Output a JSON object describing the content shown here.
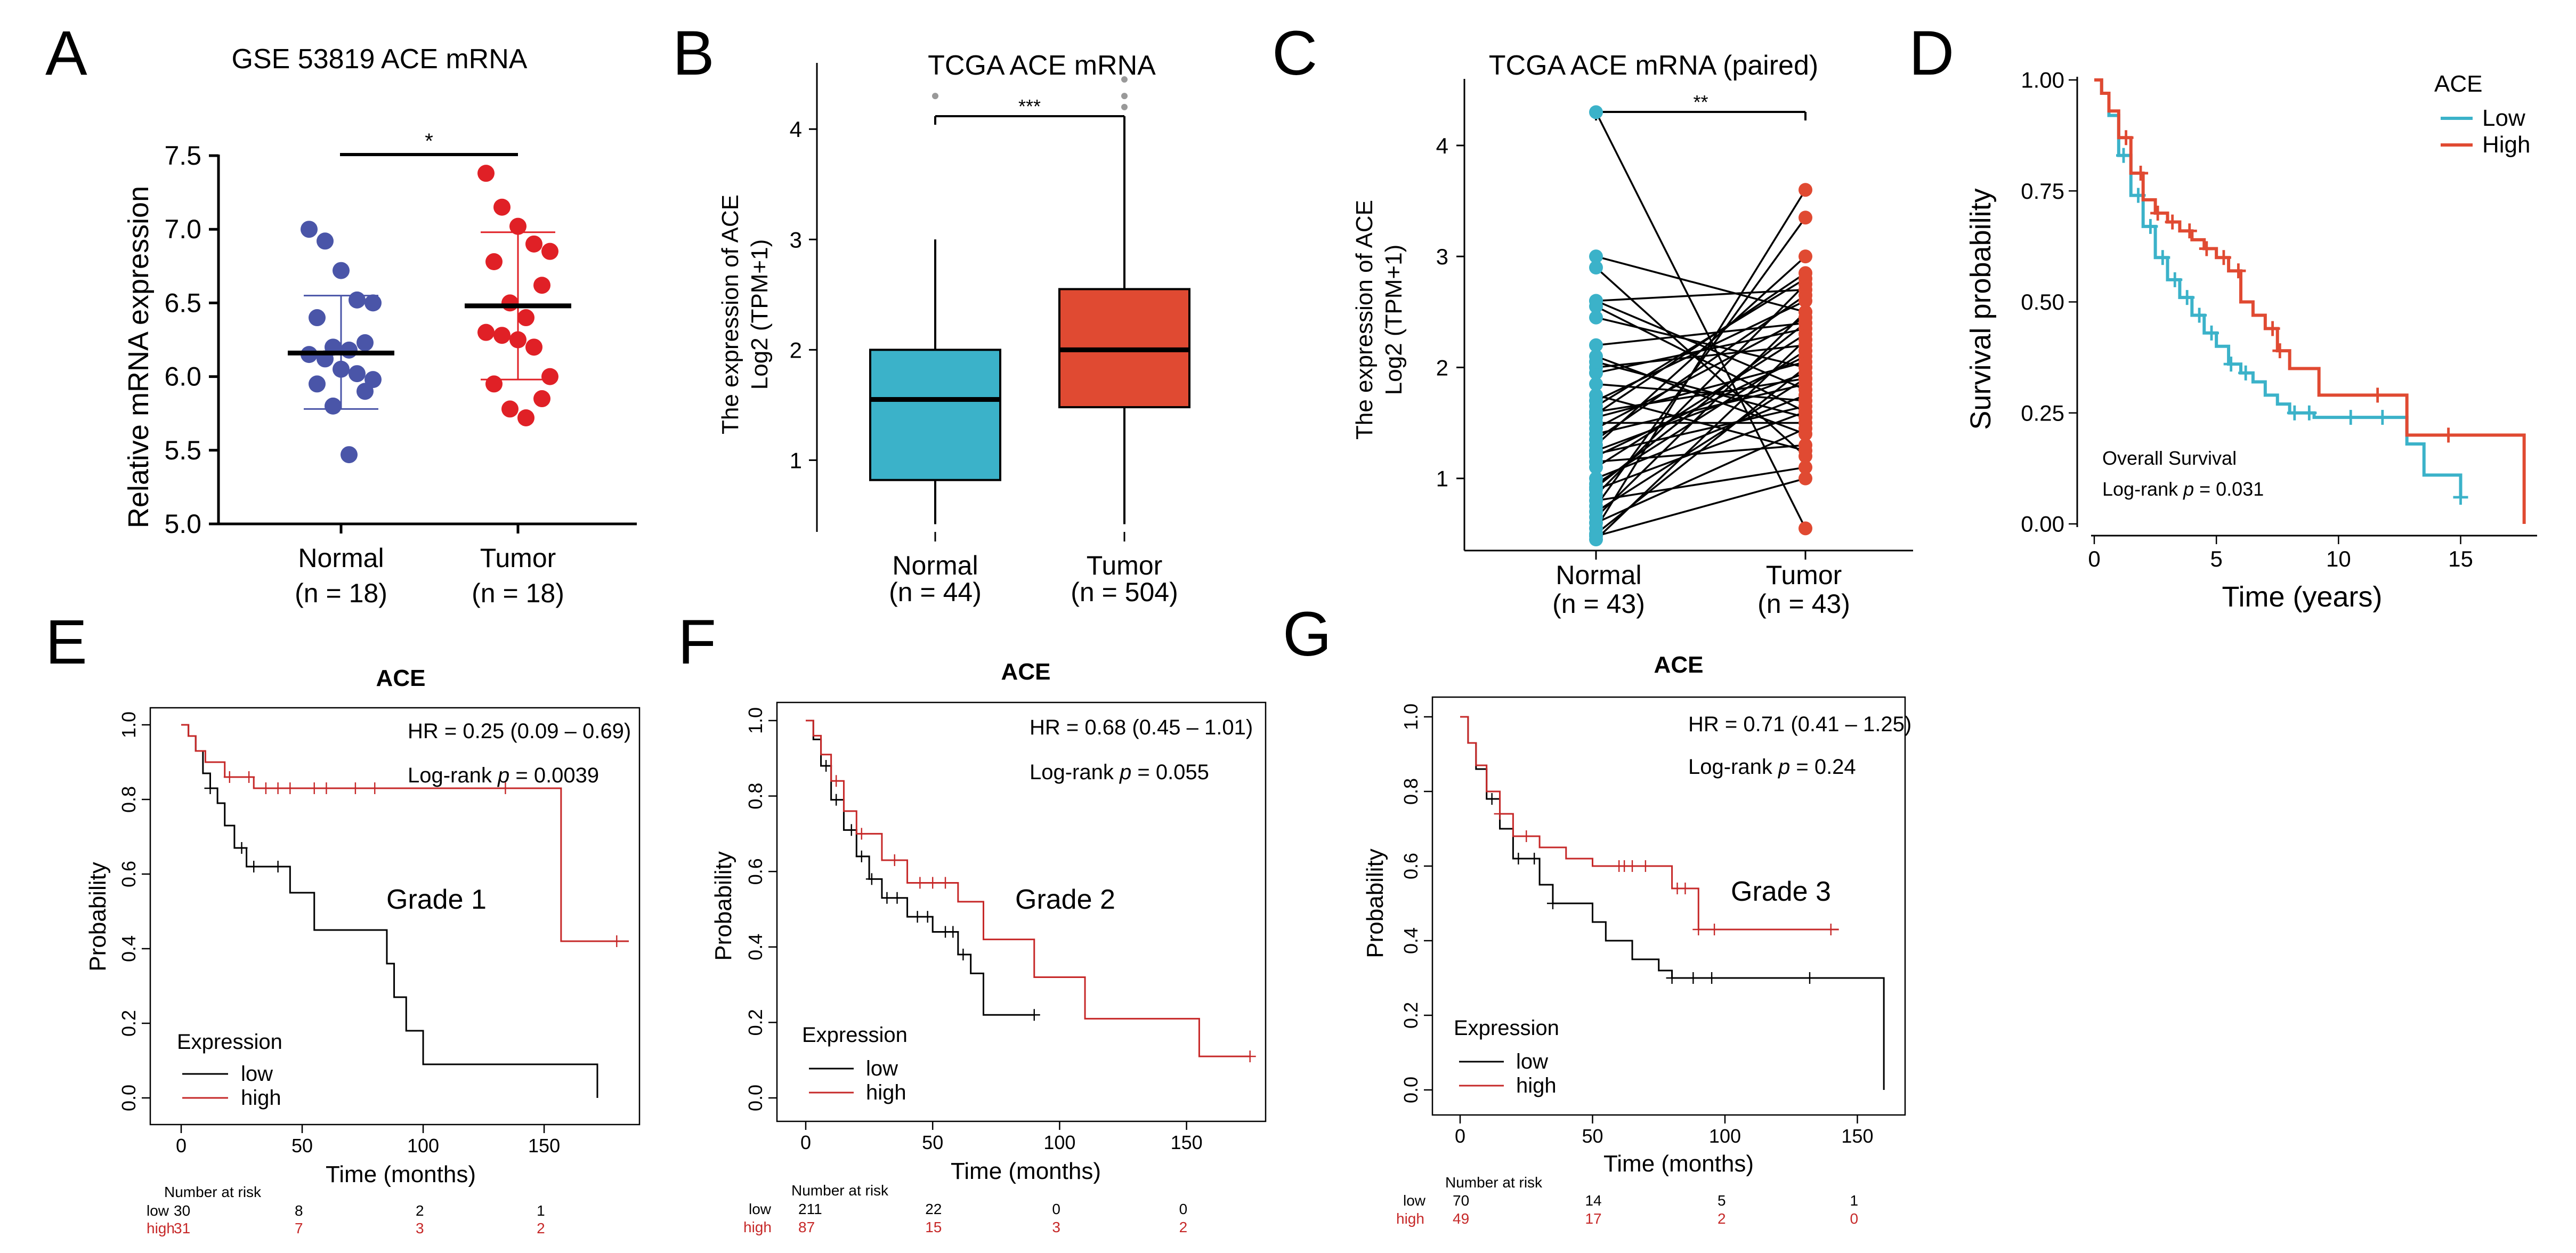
{
  "chart_data": [
    {
      "panel": "A",
      "type": "scatter",
      "title": "GSE 53819 ACE mRNA",
      "xlabel": "",
      "ylabel": "Relative mRNA expression",
      "ylim": [
        5.0,
        7.5
      ],
      "yticks": [
        "5.0",
        "5.5",
        "6.0",
        "6.5",
        "7.0",
        "7.5"
      ],
      "categories": [
        "Normal",
        "Tumor"
      ],
      "n_labels": [
        "(n = 18)",
        "(n = 18)"
      ],
      "significance": "*",
      "colors": {
        "Normal": "#4a55a8",
        "Tumor": "#e02026"
      },
      "series": [
        {
          "name": "Normal",
          "mean": 6.16,
          "sd_low": 5.78,
          "sd_high": 6.55,
          "values": [
            7.0,
            6.92,
            6.72,
            6.52,
            6.5,
            6.4,
            6.23,
            6.2,
            6.18,
            6.15,
            6.12,
            6.05,
            6.02,
            5.98,
            5.95,
            5.9,
            5.8,
            5.47
          ]
        },
        {
          "name": "Tumor",
          "mean": 6.48,
          "sd_low": 5.98,
          "sd_high": 6.98,
          "values": [
            7.38,
            7.15,
            7.02,
            6.9,
            6.85,
            6.78,
            6.62,
            6.5,
            6.4,
            6.3,
            6.28,
            6.25,
            6.2,
            6.0,
            5.95,
            5.85,
            5.78,
            5.72
          ]
        }
      ]
    },
    {
      "panel": "B",
      "type": "box",
      "title": "TCGA ACE mRNA",
      "ylabel_line1": "The expression of ACE",
      "ylabel_line2": "Log2 (TPM+1)",
      "ylim": [
        0.35,
        4.6
      ],
      "yticks": [
        "1",
        "2",
        "3",
        "4"
      ],
      "categories": [
        "Normal",
        "Tumor"
      ],
      "n_labels": [
        "(n = 44)",
        "(n = 504)"
      ],
      "significance": "***",
      "colors": {
        "Normal": "#3bb2c9",
        "Tumor": "#e04a32"
      },
      "series": [
        {
          "name": "Normal",
          "q1": 0.82,
          "median": 1.55,
          "q3": 2.0,
          "whisker_low": 0.42,
          "whisker_high": 3.0,
          "outliers": [
            4.3
          ]
        },
        {
          "name": "Tumor",
          "q1": 1.48,
          "median": 2.0,
          "q3": 2.55,
          "whisker_low": 0.42,
          "whisker_high": 4.1,
          "outliers": [
            4.2,
            4.3,
            4.45
          ]
        }
      ]
    },
    {
      "panel": "C",
      "type": "paired",
      "title": "TCGA ACE mRNA (paired)",
      "ylabel_line1": "The expression of ACE",
      "ylabel_line2": "Log2 (TPM+1)",
      "ylim": [
        0.35,
        4.6
      ],
      "yticks": [
        "1",
        "2",
        "3",
        "4"
      ],
      "categories": [
        "Normal",
        "Tumor"
      ],
      "n_labels": [
        "(n = 43)",
        "(n = 43)"
      ],
      "significance": "**",
      "colors": {
        "Normal": "#3bb2c9",
        "Tumor": "#e04a32"
      },
      "pairs": [
        [
          4.3,
          0.55
        ],
        [
          3.0,
          2.5
        ],
        [
          2.9,
          1.2
        ],
        [
          2.6,
          2.7
        ],
        [
          2.55,
          1.6
        ],
        [
          2.45,
          2.0
        ],
        [
          2.2,
          2.4
        ],
        [
          2.1,
          1.4
        ],
        [
          2.0,
          2.2
        ],
        [
          1.95,
          2.35
        ],
        [
          1.85,
          1.7
        ],
        [
          1.7,
          2.6
        ],
        [
          1.65,
          2.8
        ],
        [
          1.6,
          1.9
        ],
        [
          1.55,
          2.05
        ],
        [
          1.5,
          1.5
        ],
        [
          1.45,
          2.45
        ],
        [
          1.4,
          1.85
        ],
        [
          1.3,
          3.0
        ],
        [
          1.25,
          1.95
        ],
        [
          1.2,
          2.1
        ],
        [
          1.15,
          1.3
        ],
        [
          1.1,
          2.3
        ],
        [
          1.0,
          1.75
        ],
        [
          0.95,
          2.15
        ],
        [
          0.9,
          1.6
        ],
        [
          0.85,
          2.75
        ],
        [
          0.8,
          1.1
        ],
        [
          0.75,
          3.35
        ],
        [
          0.7,
          1.9
        ],
        [
          0.65,
          2.5
        ],
        [
          0.6,
          1.45
        ],
        [
          0.55,
          3.6
        ],
        [
          0.5,
          2.0
        ],
        [
          0.48,
          1.0
        ],
        [
          0.45,
          2.25
        ],
        [
          1.35,
          2.65
        ],
        [
          1.75,
          1.25
        ],
        [
          2.05,
          1.55
        ],
        [
          0.92,
          2.4
        ],
        [
          1.58,
          2.85
        ],
        [
          2.6,
          1.8
        ],
        [
          1.22,
          1.65
        ]
      ]
    },
    {
      "panel": "D",
      "type": "line",
      "subtype": "kaplan-meier",
      "ylabel": "Survival probability",
      "xlabel": "Time (years)",
      "xlim": [
        0,
        18
      ],
      "ylim": [
        0,
        1
      ],
      "xticks": [
        "0",
        "5",
        "10",
        "15"
      ],
      "yticks": [
        "0.00",
        "0.25",
        "0.50",
        "0.75",
        "1.00"
      ],
      "legend_title": "ACE",
      "annotation_line1": "Overall Survival",
      "annotation_line2_prefix": "Log-rank ",
      "annotation_p": "p",
      "annotation_line2_value": " = 0.031",
      "series": [
        {
          "name": "Low",
          "color": "#3bb2c9",
          "x": [
            0,
            0.3,
            0.6,
            1,
            1.5,
            2,
            2.5,
            3,
            3.5,
            4,
            4.5,
            5,
            5.5,
            6,
            6.5,
            7,
            7.5,
            8,
            9,
            10,
            11,
            12,
            12.8,
            13.5,
            15
          ],
          "y": [
            1.0,
            0.97,
            0.92,
            0.83,
            0.74,
            0.67,
            0.6,
            0.55,
            0.51,
            0.47,
            0.43,
            0.4,
            0.36,
            0.34,
            0.32,
            0.29,
            0.27,
            0.25,
            0.24,
            0.24,
            0.24,
            0.24,
            0.18,
            0.11,
            0.06
          ],
          "censor_x": [
            1.2,
            1.8,
            2.3,
            2.8,
            3.3,
            3.8,
            4.3,
            4.8,
            5.6,
            6.2,
            8.2,
            8.8,
            10.5,
            11.8,
            15
          ]
        },
        {
          "name": "High",
          "color": "#e04a32",
          "x": [
            0,
            0.3,
            0.6,
            1,
            1.5,
            2,
            2.5,
            3,
            3.5,
            4,
            4.5,
            5,
            5.5,
            6,
            6.5,
            7,
            7.5,
            8,
            9.2,
            11,
            12.8,
            13.5,
            15,
            17.6
          ],
          "y": [
            1.0,
            0.97,
            0.93,
            0.87,
            0.79,
            0.73,
            0.7,
            0.68,
            0.66,
            0.64,
            0.62,
            0.6,
            0.57,
            0.5,
            0.47,
            0.44,
            0.39,
            0.35,
            0.29,
            0.29,
            0.2,
            0.2,
            0.2,
            0.0
          ],
          "censor_x": [
            1.3,
            1.9,
            2.6,
            3.2,
            3.9,
            4.6,
            5.3,
            5.9,
            7.3,
            7.6,
            11.6,
            14.5
          ]
        }
      ]
    },
    {
      "panel": "E",
      "type": "line",
      "subtype": "kaplan-meier",
      "title": "ACE",
      "xlabel": "Time (months)",
      "ylabel": "Probability",
      "xlim": [
        0,
        185
      ],
      "ylim": [
        0,
        1
      ],
      "xticks": [
        "0",
        "50",
        "100",
        "150"
      ],
      "yticks": [
        "0.0",
        "0.2",
        "0.4",
        "0.6",
        "0.8",
        "1.0"
      ],
      "hr": "HR = 0.25  (0.09 – 0.69)",
      "logrank_prefix": "Log-rank ",
      "logrank_p": "p",
      "logrank_value": " = 0.0039",
      "grade_label": "Grade 1",
      "legend_title": "Expression",
      "risk_header": "Number at risk",
      "risk_rows": [
        {
          "label": "low",
          "color": "#000000",
          "values": [
            "30",
            "8",
            "2",
            "1"
          ]
        },
        {
          "label": "high",
          "color": "#c62828",
          "values": [
            "31",
            "7",
            "3",
            "2"
          ]
        }
      ],
      "series": [
        {
          "name": "low",
          "color": "#000000",
          "x": [
            0,
            3,
            6,
            9,
            12,
            15,
            18,
            22,
            27,
            35,
            45,
            55,
            58,
            85,
            88,
            93,
            100,
            150,
            172
          ],
          "y": [
            1.0,
            0.97,
            0.93,
            0.87,
            0.83,
            0.79,
            0.73,
            0.67,
            0.62,
            0.62,
            0.55,
            0.45,
            0.45,
            0.36,
            0.27,
            0.18,
            0.09,
            0.09,
            0.0
          ],
          "censor_x": [
            12,
            25,
            30,
            40
          ]
        },
        {
          "name": "high",
          "color": "#c62828",
          "x": [
            0,
            3,
            6,
            10,
            18,
            30,
            60,
            120,
            157,
            185
          ],
          "y": [
            1.0,
            0.97,
            0.93,
            0.9,
            0.86,
            0.83,
            0.83,
            0.83,
            0.42,
            0.42
          ],
          "censor_x": [
            20,
            28,
            35,
            40,
            45,
            55,
            60,
            72,
            80,
            134,
            180
          ]
        }
      ]
    },
    {
      "panel": "F",
      "type": "line",
      "subtype": "kaplan-meier",
      "title": "ACE",
      "xlabel": "Time (months)",
      "ylabel": "Probability",
      "xlim": [
        0,
        178
      ],
      "ylim": [
        0,
        1
      ],
      "xticks": [
        "0",
        "50",
        "100",
        "150"
      ],
      "yticks": [
        "0.0",
        "0.2",
        "0.4",
        "0.6",
        "0.8",
        "1.0"
      ],
      "hr": "HR = 0.68  (0.45 – 1.01)",
      "logrank_prefix": "Log-rank ",
      "logrank_p": "p",
      "logrank_value": " = 0.055",
      "grade_label": "Grade 2",
      "legend_title": "Expression",
      "risk_header": "Number at risk",
      "risk_rows": [
        {
          "label": "low",
          "color": "#000000",
          "values": [
            "211",
            "22",
            "0",
            "0"
          ]
        },
        {
          "label": "high",
          "color": "#c62828",
          "values": [
            "87",
            "15",
            "3",
            "2"
          ]
        }
      ],
      "series": [
        {
          "name": "low",
          "color": "#000000",
          "x": [
            0,
            3,
            6,
            10,
            15,
            20,
            25,
            30,
            40,
            50,
            60,
            65,
            70,
            75,
            90
          ],
          "y": [
            1.0,
            0.95,
            0.88,
            0.79,
            0.71,
            0.64,
            0.58,
            0.53,
            0.48,
            0.44,
            0.38,
            0.33,
            0.22,
            0.22,
            0.22
          ],
          "censor_x": [
            8,
            12,
            18,
            22,
            26,
            32,
            36,
            44,
            48,
            55,
            58,
            62,
            90
          ]
        },
        {
          "name": "high",
          "color": "#c62828",
          "x": [
            0,
            3,
            6,
            10,
            15,
            20,
            30,
            40,
            60,
            70,
            90,
            110,
            155,
            175
          ],
          "y": [
            1.0,
            0.96,
            0.91,
            0.84,
            0.76,
            0.7,
            0.63,
            0.57,
            0.52,
            0.42,
            0.32,
            0.21,
            0.11,
            0.11
          ],
          "censor_x": [
            12,
            22,
            35,
            45,
            50,
            55,
            175
          ]
        }
      ]
    },
    {
      "panel": "G",
      "type": "line",
      "subtype": "kaplan-meier",
      "title": "ACE",
      "xlabel": "Time (months)",
      "ylabel": "Probability",
      "xlim": [
        0,
        165
      ],
      "ylim": [
        0,
        1
      ],
      "xticks": [
        "0",
        "50",
        "100",
        "150"
      ],
      "yticks": [
        "0.0",
        "0.2",
        "0.4",
        "0.6",
        "0.8",
        "1.0"
      ],
      "hr": "HR = 0.71  (0.41 – 1.25)",
      "logrank_prefix": "Log-rank ",
      "logrank_p": "p",
      "logrank_value": " = 0.24",
      "grade_label": "Grade 3",
      "legend_title": "Expression",
      "risk_header": "Number at risk",
      "risk_rows": [
        {
          "label": "low",
          "color": "#000000",
          "values": [
            "70",
            "14",
            "5",
            "1"
          ]
        },
        {
          "label": "high",
          "color": "#c62828",
          "values": [
            "49",
            "17",
            "2",
            "0"
          ]
        }
      ],
      "series": [
        {
          "name": "low",
          "color": "#000000",
          "x": [
            0,
            3,
            6,
            10,
            15,
            20,
            30,
            35,
            50,
            55,
            65,
            75,
            80,
            100,
            160
          ],
          "y": [
            1.0,
            0.93,
            0.86,
            0.78,
            0.7,
            0.62,
            0.55,
            0.5,
            0.45,
            0.4,
            0.35,
            0.32,
            0.3,
            0.3,
            0.0
          ],
          "censor_x": [
            12,
            22,
            28,
            35,
            80,
            88,
            95,
            132
          ]
        },
        {
          "name": "high",
          "color": "#c62828",
          "x": [
            0,
            3,
            6,
            10,
            15,
            20,
            30,
            40,
            50,
            70,
            80,
            90,
            100,
            143
          ],
          "y": [
            1.0,
            0.93,
            0.87,
            0.8,
            0.74,
            0.68,
            0.65,
            0.62,
            0.6,
            0.6,
            0.54,
            0.43,
            0.43,
            0.43
          ],
          "censor_x": [
            15,
            25,
            60,
            62,
            65,
            70,
            82,
            85,
            90,
            96,
            140
          ]
        }
      ]
    }
  ]
}
